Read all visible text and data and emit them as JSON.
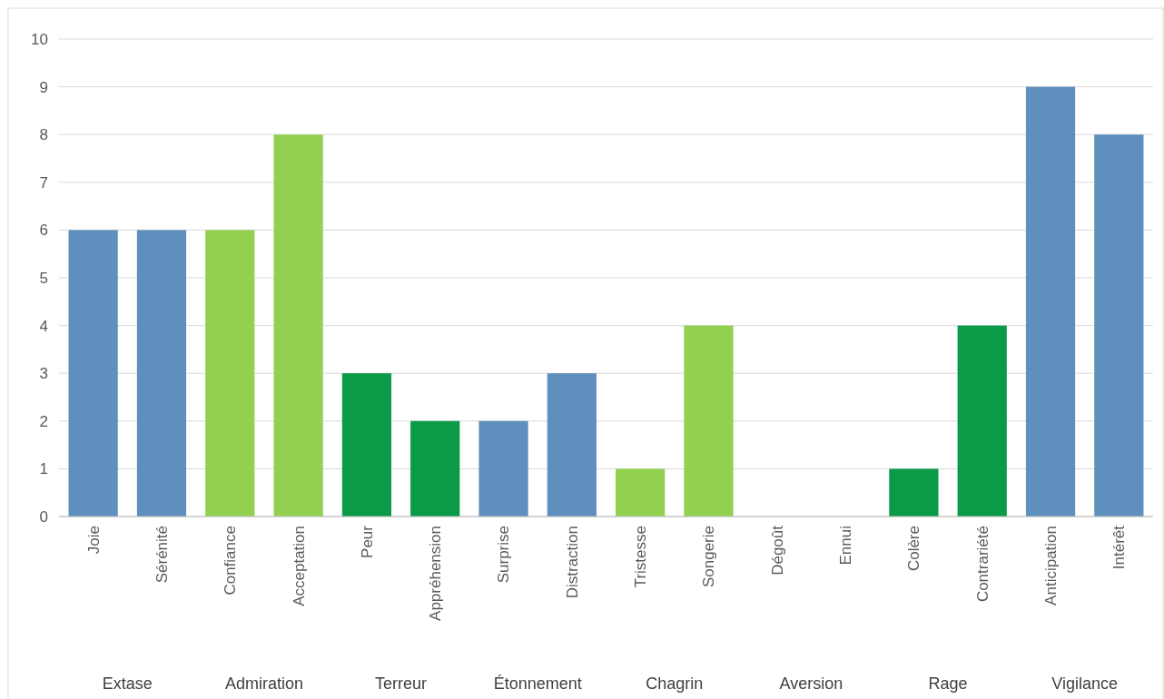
{
  "chart_data": {
    "type": "bar",
    "categories": [
      "Joie",
      "Sérénité",
      "Confiance",
      "Acceptation",
      "Peur",
      "Appréhension",
      "Surprise",
      "Distraction",
      "Tristesse",
      "Songerie",
      "Dégoût",
      "Ennui",
      "Colère",
      "Contrariété",
      "Anticipation",
      "Intérêt"
    ],
    "values": [
      6,
      6,
      6,
      8,
      3,
      2,
      2,
      3,
      1,
      4,
      0,
      0,
      1,
      4,
      9,
      8
    ],
    "colors": [
      "#5f8fbc",
      "#5f8fbc",
      "#92d050",
      "#92d050",
      "#0a9a48",
      "#0a9a48",
      "#5f8fbc",
      "#5f8fbc",
      "#92d050",
      "#92d050",
      "#0a9a48",
      "#0a9a48",
      "#0a9a48",
      "#0a9a48",
      "#5f8fbc",
      "#5f8fbc"
    ],
    "annotations": [
      "Extase",
      "Admiration",
      "Terreur",
      "Étonnement",
      "Chagrin",
      "Aversion",
      "Rage",
      "Vigilance"
    ],
    "ylim": [
      0,
      10
    ],
    "yticks": [
      0,
      1,
      2,
      3,
      4,
      5,
      6,
      7,
      8,
      9,
      10
    ],
    "grid": "y"
  }
}
